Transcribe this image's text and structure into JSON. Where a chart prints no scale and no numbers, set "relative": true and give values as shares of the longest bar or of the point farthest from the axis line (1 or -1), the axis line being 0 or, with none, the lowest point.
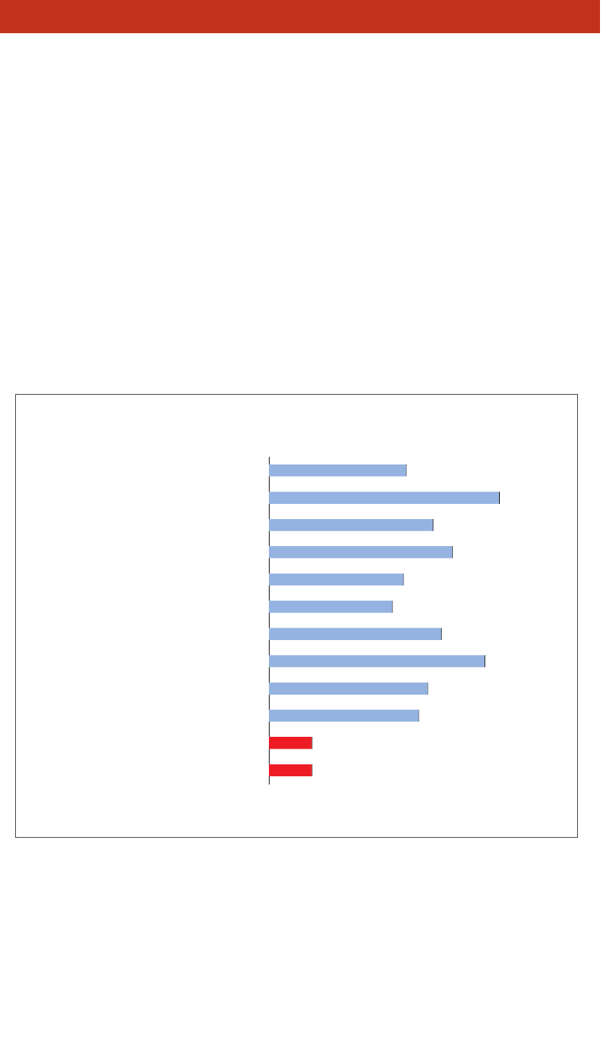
{
  "chart_data": {
    "type": "bar",
    "orientation": "horizontal",
    "relative": true,
    "categories": [
      null,
      null,
      null,
      null,
      null,
      null,
      null,
      null,
      null,
      null,
      null,
      null
    ],
    "values": [
      0.597,
      1,
      0.713,
      0.797,
      0.585,
      0.537,
      0.749,
      0.937,
      0.69,
      0.651,
      0.188,
      0.188
    ],
    "colors": [
      "#95b3e0",
      "#95b3e0",
      "#95b3e0",
      "#95b3e0",
      "#95b3e0",
      "#95b3e0",
      "#95b3e0",
      "#95b3e0",
      "#95b3e0",
      "#95b3e0",
      "#ed1c24",
      "#ed1c24"
    ],
    "grid": false,
    "legend": false
  }
}
